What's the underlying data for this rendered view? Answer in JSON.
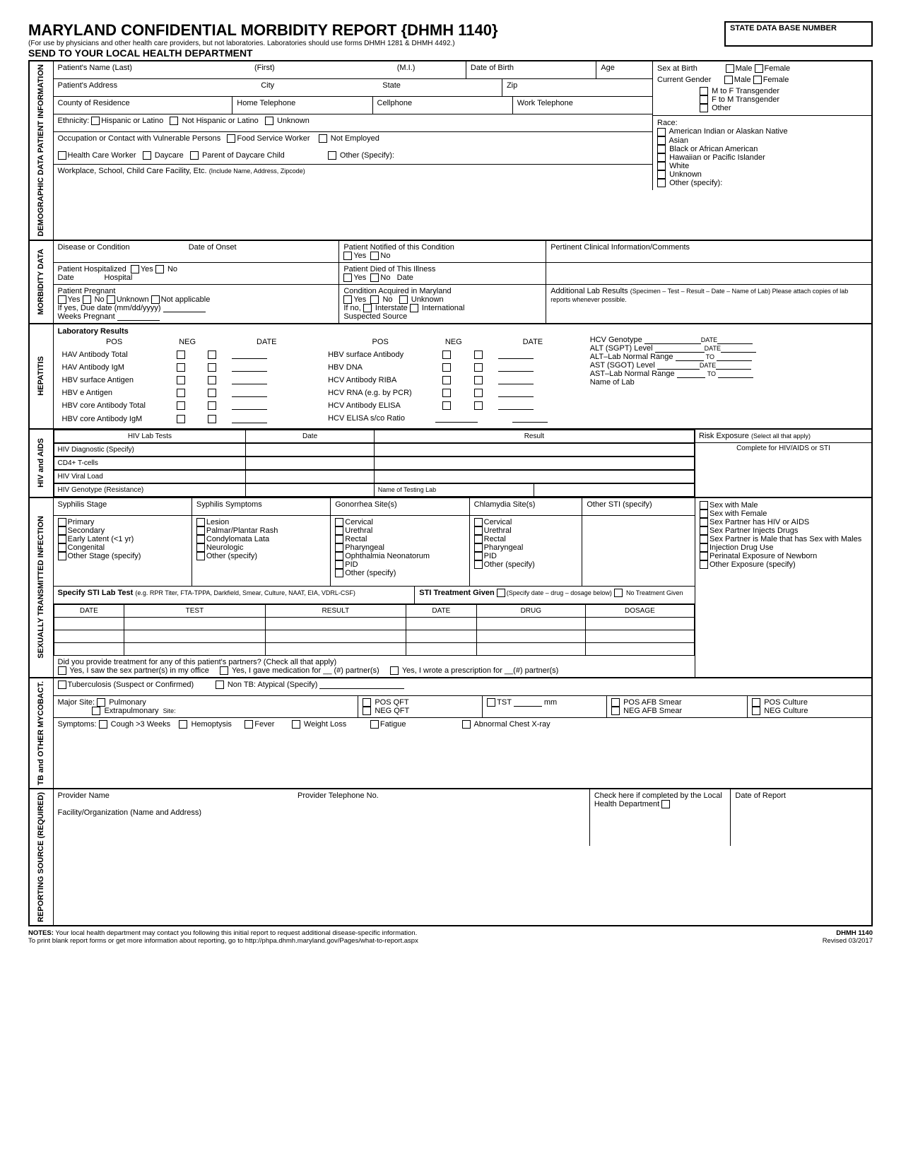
{
  "header": {
    "title": "MARYLAND CONFIDENTIAL MORBIDITY REPORT {DHMH 1140}",
    "subtitle": "(For use by physicians and other health care providers, but not laboratories. Laboratories should use forms DHMH 1281 & DHMH 4492.)",
    "send_to": "SEND TO YOUR LOCAL HEALTH DEPARTMENT",
    "db_label": "STATE DATA BASE NUMBER"
  },
  "sections": {
    "demo": "DEMOGRAPHIC DATA\nPATIENT INFORMATION",
    "morbidity": "MORBIDITY\nDATA",
    "hepatitis": "HEPATITIS",
    "hiv": "HIV\nand\nAIDS",
    "sti": "SEXUALLY TRANSMITTED INFECTION",
    "tb": "TB\nand OTHER\nMYCOBACT.",
    "reporting": "REPORTING\nSOURCE\n(REQUIRED)"
  },
  "demo": {
    "name_last": "Patient's Name  (Last)",
    "name_first": "(First)",
    "name_mi": "(M.I.)",
    "dob": "Date of Birth",
    "age": "Age",
    "sex_birth": "Sex at Birth",
    "male": "Male",
    "female": "Female",
    "cur_gender": "Current Gender",
    "mtf": "M to F Transgender",
    "ftm": "F to M Transgender",
    "other": "Other",
    "address": "Patient's Address",
    "city": "City",
    "state": "State",
    "zip": "Zip",
    "county": "County of Residence",
    "home_tel": "Home Telephone",
    "cell": "Cellphone",
    "work_tel": "Work Telephone",
    "ethnicity": "Ethnicity:",
    "eth1": "Hispanic or Latino",
    "eth2": "Not Hispanic or Latino",
    "eth3": "Unknown",
    "race": "Race:",
    "race1": "American Indian or Alaskan Native",
    "race2": "Asian",
    "race3": "Black or African American",
    "race4": "Hawaiian or Pacific Islander",
    "race5": "White",
    "race6": "Unknown",
    "race7": "Other (specify):",
    "occ": "Occupation or Contact with Vulnerable Persons",
    "occ1": "Food Service Worker",
    "occ2": "Not Employed",
    "occ3": "Health Care Worker",
    "occ4": "Daycare",
    "occ5": "Parent of Daycare Child",
    "occ6": "Other (Specify):",
    "workplace": "Workplace, School, Child Care Facility, Etc.",
    "workplace_sub": "(Include Name, Address, Zipcode)"
  },
  "morb": {
    "disease": "Disease or Condition",
    "onset": "Date of Onset",
    "notified": "Patient Notified of this Condition",
    "yes": "Yes",
    "no": "No",
    "pert": "Pertinent Clinical Information/Comments",
    "hosp": "Patient Hospitalized",
    "date": "Date",
    "hospital": "Hospital",
    "died": "Patient Died of This Illness",
    "preg": "Patient Pregnant",
    "unk": "Unknown",
    "na": "Not applicable",
    "due": "If yes, Due date (mm/dd/yyyy)",
    "weeks": "Weeks Pregnant",
    "acq": "Condition Acquired in Maryland",
    "ifno": "If no,",
    "interstate": "Interstate",
    "intl": "International",
    "susp": "Suspected Source",
    "addl": "Additional Lab Results",
    "addl_sub": "(Specimen – Test – Result – Date – Name of Lab)  Please attach copies of lab reports whenever possible."
  },
  "hep": {
    "lab_results": "Laboratory Results",
    "pos": "POS",
    "neg": "NEG",
    "date": "DATE",
    "r1c1": [
      "HAV Antibody Total",
      "HAV Antibody IgM",
      "HBV surface Antigen",
      "HBV e Antigen",
      "HBV core Antibody Total",
      "HBV core Antibody IgM"
    ],
    "r1c2": [
      "HBV surface Antibody",
      "HBV DNA",
      "HCV Antibody RIBA",
      "HCV RNA (e.g. by PCR)",
      "HCV Antibody ELISA",
      "HCV ELISA s/co Ratio"
    ],
    "hcv_geno": "HCV Genotype",
    "alt": "ALT (SGPT) Level",
    "alt_range": "ALT–Lab Normal Range",
    "ast": "AST (SGOT) Level",
    "ast_range": "AST–Lab Normal Range",
    "to": "TO",
    "name_lab": "Name of Lab"
  },
  "hiv": {
    "tests": "HIV Lab Tests",
    "date": "Date",
    "result": "Result",
    "risk": "Risk Exposure",
    "risk_sub": "(Select all that apply)",
    "complete": "Complete for HIV/AIDS or STI",
    "rows": [
      "HIV Diagnostic (Specify)",
      "CD4+ T-cells",
      "HIV Viral Load",
      "HIV Genotype (Resistance)"
    ],
    "name_lab": "Name of Testing Lab",
    "exp": [
      "Sex with Male",
      "Sex with Female",
      "Sex Partner has HIV or AIDS",
      "Sex Partner Injects Drugs",
      "Sex Partner is Male that has Sex with Males",
      "Injection Drug Use",
      "Perinatal Exposure of Newborn",
      "Other Exposure (specify)"
    ]
  },
  "sti": {
    "stage": "Syphilis Stage",
    "symptoms": "Syphilis Symptoms",
    "gon": "Gonorrhea Site(s)",
    "chl": "Chlamydia Site(s)",
    "other": "Other STI (specify)",
    "stages": [
      "Primary",
      "Secondary",
      "Early Latent (<1 yr)",
      "Congenital",
      "Other Stage (specify)"
    ],
    "symps": [
      "Lesion",
      "Palmar/Plantar Rash",
      "Condylomata Lata",
      "Neurologic",
      "Other (specify)"
    ],
    "gons": [
      "Cervical",
      "Urethral",
      "Rectal",
      "Pharyngeal",
      "Ophthalmia Neonatorum",
      "PID",
      "Other (specify)"
    ],
    "chls": [
      "Cervical",
      "Urethral",
      "Rectal",
      "Pharyngeal",
      "PID",
      "Other (specify)"
    ],
    "specify": "Specify STI Lab Test",
    "specify_sub": "(e.g. RPR Titer, FTA-TPPA, Darkfield, Smear, Culture, NAAT, EIA, VDRL-CSF)",
    "treat": "STI Treatment Given",
    "treat_sub": "(Specify date – drug – dosage below)",
    "no_treat": "No Treatment Given",
    "cols1": [
      "DATE",
      "TEST",
      "RESULT"
    ],
    "cols2": [
      "DATE",
      "DRUG",
      "DOSAGE"
    ],
    "partners": "Did you provide treatment for any of this patient's partners?  (Check all that apply)",
    "p1": "Yes, I saw the sex partner(s) in my office",
    "p2": "Yes, I gave medication for __  (#) partner(s)",
    "p3": "Yes, I wrote a prescription for __(#) partner(s)"
  },
  "tb": {
    "tb": "Tuberculosis (Suspect or Confirmed)",
    "non_tb": "Non TB: Atypical (Specify)",
    "major": "Major Site:",
    "pulm": "Pulmonary",
    "extra": "Extrapulmonary",
    "site": "Site:",
    "pos_qft": "POS QFT",
    "neg_qft": "NEG QFT",
    "tst": "TST",
    "mm": "mm",
    "pos_afb": "POS AFB Smear",
    "neg_afb": "NEG AFB Smear",
    "pos_cult": "POS Culture",
    "neg_cult": "NEG Culture",
    "symptoms": "Symptoms:",
    "s1": "Cough >3 Weeks",
    "s2": "Hemoptysis",
    "s3": "Fever",
    "s4": "Weight Loss",
    "s5": "Fatigue",
    "s6": "Abnormal Chest X-ray"
  },
  "rep": {
    "provider": "Provider Name",
    "tel": "Provider Telephone No.",
    "check": "Check here if completed by the Local Health Department",
    "dor": "Date of Report",
    "facility": "Facility/Organization (Name and Address)"
  },
  "notes": {
    "l1": "NOTES:  Your local health department may contact you following this initial report to request additional disease-specific information.",
    "l2": "To print blank report forms or get more information about reporting, go to http://phpa.dhmh.maryland.gov/Pages/what-to-report.aspx",
    "r1": "DHMH 1140",
    "r2": "Revised 03/2017"
  }
}
